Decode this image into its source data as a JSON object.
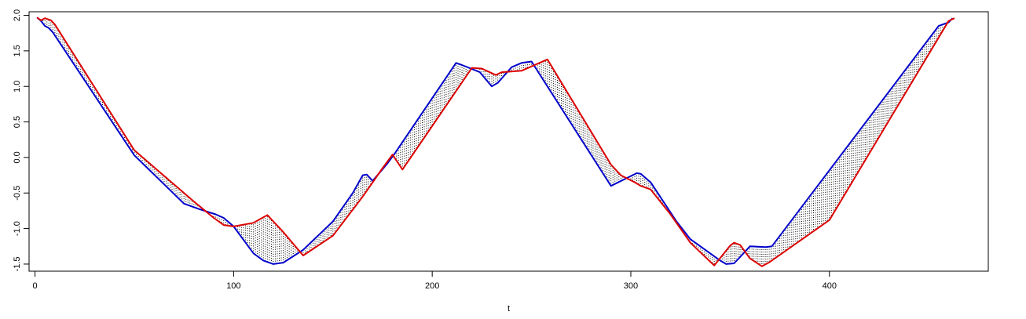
{
  "chart_data": {
    "type": "line",
    "title": "",
    "xlabel": "t",
    "ylabel": "",
    "xlim": [
      -3,
      480
    ],
    "ylim": [
      -1.6,
      2.05
    ],
    "x_ticks": [
      0,
      100,
      200,
      300,
      400
    ],
    "y_ticks": [
      -1.5,
      -1.0,
      -0.5,
      0.0,
      0.5,
      1.0,
      1.5,
      2.0
    ],
    "x_tick_labels": [
      "0",
      "100",
      "200",
      "300",
      "400"
    ],
    "y_tick_labels": [
      "-1.5",
      "-1.0",
      "-0.5",
      "0.0",
      "0.5",
      "1.0",
      "1.5",
      "2.0"
    ],
    "grid": false,
    "legend": "none",
    "shading": "dotted vertical segments between the two series at each t",
    "series": [
      {
        "color": "#0000cc",
        "x": [
          1,
          3,
          5,
          7,
          9,
          50,
          75,
          83,
          91,
          95,
          100,
          110,
          115,
          120,
          125,
          135,
          150,
          160,
          165,
          167,
          170,
          177,
          181,
          212,
          215,
          224,
          230,
          233,
          240,
          245,
          250,
          290,
          303,
          305,
          310,
          323,
          330,
          345,
          348,
          352,
          355,
          360,
          368,
          371,
          455,
          460,
          462
        ],
        "y": [
          1.97,
          1.92,
          1.85,
          1.82,
          1.76,
          0.03,
          -0.65,
          -0.73,
          -0.8,
          -0.85,
          -0.97,
          -1.35,
          -1.45,
          -1.5,
          -1.48,
          -1.3,
          -0.9,
          -0.5,
          -0.25,
          -0.24,
          -0.33,
          -0.1,
          0.05,
          1.33,
          1.3,
          1.2,
          1.0,
          1.05,
          1.27,
          1.33,
          1.35,
          -0.4,
          -0.22,
          -0.23,
          -0.35,
          -0.9,
          -1.15,
          -1.45,
          -1.5,
          -1.49,
          -1.4,
          -1.25,
          -1.26,
          -1.25,
          1.85,
          1.9,
          1.96
        ]
      },
      {
        "color": "#dd0000",
        "x": [
          1,
          3,
          5,
          8,
          10,
          50,
          80,
          90,
          95,
          100,
          110,
          117,
          125,
          135,
          150,
          165,
          175,
          180,
          185,
          220,
          225,
          232,
          235,
          245,
          258,
          290,
          295,
          302,
          305,
          310,
          320,
          330,
          342,
          350,
          352,
          355,
          360,
          366,
          370,
          400,
          460,
          463
        ],
        "y": [
          1.97,
          1.93,
          1.96,
          1.93,
          1.87,
          0.1,
          -0.62,
          -0.85,
          -0.95,
          -0.97,
          -0.92,
          -0.81,
          -1.05,
          -1.38,
          -1.1,
          -0.55,
          -0.15,
          0.04,
          -0.17,
          1.26,
          1.25,
          1.16,
          1.2,
          1.22,
          1.38,
          -0.1,
          -0.25,
          -0.35,
          -0.4,
          -0.45,
          -0.8,
          -1.2,
          -1.52,
          -1.24,
          -1.2,
          -1.23,
          -1.42,
          -1.53,
          -1.47,
          -0.88,
          1.92,
          1.96
        ]
      }
    ]
  }
}
